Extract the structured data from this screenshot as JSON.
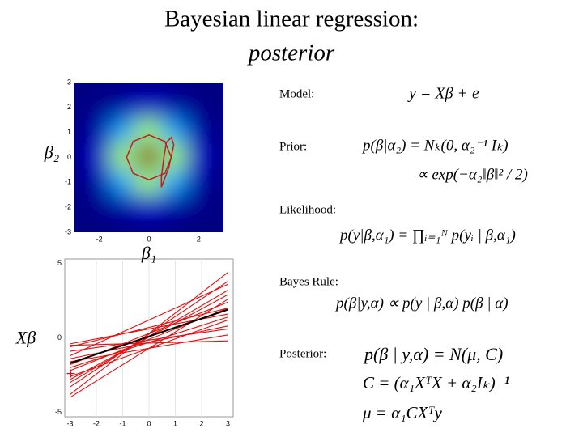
{
  "title": [
    "Bayesian linear regression:",
    "posterior"
  ],
  "chart_data": [
    {
      "type": "heatmap",
      "x": [
        -3,
        -2,
        -1,
        0,
        1,
        2,
        3
      ],
      "y": [
        3,
        2,
        1,
        0,
        -1,
        -2,
        -3
      ],
      "z": [
        [
          0,
          0,
          0,
          0,
          0,
          0,
          0
        ],
        [
          0,
          0.01,
          0.04,
          0.08,
          0.04,
          0.01,
          0
        ],
        [
          0,
          0.04,
          0.29,
          0.54,
          0.29,
          0.04,
          0
        ],
        [
          0,
          0.08,
          0.54,
          1,
          0.54,
          0.08,
          0
        ],
        [
          0,
          0.04,
          0.29,
          0.54,
          0.29,
          0.04,
          0
        ],
        [
          0,
          0.01,
          0.04,
          0.08,
          0.04,
          0.01,
          0
        ],
        [
          0,
          0,
          0,
          0,
          0,
          0,
          0
        ]
      ],
      "colormap": "jet",
      "contours": [
        {
          "color": "#c0201a",
          "x": [
            0.9,
            0.64,
            0,
            -0.64,
            -0.9,
            -0.64,
            0,
            0.64,
            0.9
          ],
          "y": [
            0,
            0.64,
            0.9,
            0.64,
            0,
            -0.64,
            -0.9,
            -0.64,
            0
          ]
        },
        {
          "color": "#c0201a",
          "x": [
            0.5,
            0.8,
            1.0,
            0.9,
            0.7,
            0.6,
            0.5,
            0.5
          ],
          "y": [
            -1.2,
            -0.4,
            0.5,
            0.8,
            0.6,
            0,
            -0.8,
            -1.2
          ]
        }
      ],
      "xlabel": "β₁",
      "ylabel": "β₂",
      "xlim": [
        -3,
        3
      ],
      "ylim": [
        -3,
        3
      ],
      "xticks": [
        -2,
        0,
        2
      ],
      "yticks": [
        -3,
        -2,
        -1,
        0,
        1,
        2,
        3
      ]
    },
    {
      "type": "line",
      "x": [
        -3,
        3
      ],
      "ylabel": "Xβ",
      "xlim": [
        -3.2,
        3.2
      ],
      "ylim": [
        -5.3,
        5.3
      ],
      "xticks": [
        -3,
        -2,
        -1,
        0,
        1,
        2,
        3
      ],
      "yticks": [
        -5,
        0,
        5
      ],
      "grid": true,
      "series": [
        {
          "color": "#e01010",
          "values": [
            -3.8,
            4.4
          ]
        },
        {
          "color": "#e01010",
          "values": [
            -3.3,
            3.8
          ]
        },
        {
          "color": "#e01010",
          "values": [
            -2.8,
            2.9
          ]
        },
        {
          "color": "#e01010",
          "values": [
            -1.8,
            2.4
          ]
        },
        {
          "color": "#e01010",
          "values": [
            -0.4,
            1.6
          ]
        },
        {
          "color": "#e01010",
          "values": [
            -0.6,
            2.0
          ]
        },
        {
          "color": "#e01010",
          "values": [
            -1.2,
            3.6
          ]
        },
        {
          "color": "#e01010",
          "values": [
            -2.2,
            2.0
          ]
        },
        {
          "color": "#e01010",
          "values": [
            -2.6,
            1.2
          ]
        },
        {
          "color": "#e01010",
          "values": [
            -1.4,
            0.8
          ]
        },
        {
          "color": "#e01010",
          "values": [
            -0.5,
            -0.2
          ]
        },
        {
          "color": "#e01010",
          "values": [
            -0.9,
            0.6
          ]
        },
        {
          "color": "#e01010",
          "values": [
            -3.0,
            3.2
          ]
        },
        {
          "color": "#e01010",
          "values": [
            -2.0,
            1.4
          ]
        },
        {
          "color": "#e01010",
          "values": [
            -1.6,
            0.2
          ]
        },
        {
          "color": "#e01010",
          "values": [
            -4.0,
            2.6
          ]
        },
        {
          "color": "#000000",
          "values": [
            -1.7,
            1.9
          ]
        },
        {
          "color": "#e01010",
          "values": [
            -2.4,
            null
          ],
          "marker": "+"
        }
      ]
    }
  ],
  "labels": [
    "Model:",
    "Prior:",
    "Likelihood:",
    "Bayes Rule:",
    "Posterior:"
  ],
  "equations": [
    "y = Xβ + e",
    "p(β|α₂) = Nₖ(0, α₂⁻¹ Iₖ)",
    "∝ exp(−α₂‖β‖² / 2)",
    "p(y|β,α₁) = ∏ᵢ₌₁ᴺ p(yᵢ | β,α₁)",
    "p(β|y,α) ∝ p(y | β,α) p(β | α)",
    "p(β | y,α) = N(μ, C)",
    "C = (α₁XᵀX + α₂Iₖ)⁻¹",
    "μ = α₁CXᵀy"
  ]
}
